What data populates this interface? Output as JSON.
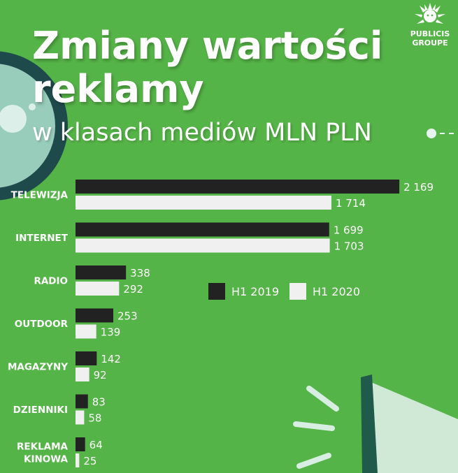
{
  "header": {
    "title_line1": "Zmiany wartości",
    "title_line2": "reklamy",
    "subtitle": "w klasach mediów MLN PLN"
  },
  "brand": {
    "line1": "PUBLICIS",
    "line2": "GROUPE",
    "icon": "lion-logo-icon"
  },
  "colors": {
    "background": "#55b447",
    "series_2019": "#222222",
    "series_2020": "#f0f0f0",
    "text": "#ffffff",
    "ring": "#1f4a4c",
    "lens": "#a9d6cc",
    "megaphone": "#cfe9d6"
  },
  "chart_data": {
    "type": "bar",
    "orientation": "horizontal",
    "categories": [
      "TELEWIZJA",
      "INTERNET",
      "RADIO",
      "OUTDOOR",
      "MAGAZYNY",
      "DZIENNIKI",
      "REKLAMA KINOWA"
    ],
    "category_lines": [
      [
        "TELEWIZJA"
      ],
      [
        "INTERNET"
      ],
      [
        "RADIO"
      ],
      [
        "OUTDOOR"
      ],
      [
        "MAGAZYNY"
      ],
      [
        "DZIENNIKI"
      ],
      [
        "REKLAMA",
        "KINOWA"
      ]
    ],
    "series": [
      {
        "name": "H1 2019",
        "values": [
          2169,
          1699,
          338,
          253,
          142,
          83,
          64
        ],
        "labels": [
          "2 169",
          "1 699",
          "338",
          "253",
          "142",
          "83",
          "64"
        ]
      },
      {
        "name": "H1 2020",
        "values": [
          1714,
          1703,
          292,
          139,
          92,
          58,
          25
        ],
        "labels": [
          "1 714",
          "1 703",
          "292",
          "139",
          "92",
          "58",
          "25"
        ]
      }
    ],
    "legend_position": "middle-right",
    "grid": false,
    "title": "Zmiany wartości reklamy",
    "subtitle": "w klasach mediów MLN PLN"
  }
}
